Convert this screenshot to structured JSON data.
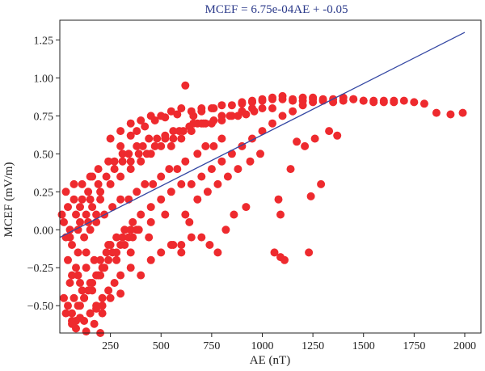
{
  "chart_data": {
    "type": "scatter",
    "title": "MCEF = 6.75e-04AE + -0.05",
    "xlabel": "AE (nT)",
    "ylabel": "MCEF (mV/m)",
    "xlim": [
      0,
      2080
    ],
    "ylim": [
      -0.68,
      1.38
    ],
    "xticks": [
      250,
      500,
      750,
      1000,
      1250,
      1500,
      1750,
      2000
    ],
    "yticks": [
      -0.5,
      -0.25,
      0.0,
      0.25,
      0.5,
      0.75,
      1.0,
      1.25
    ],
    "xtick_labels": [
      "250",
      "500",
      "750",
      "1000",
      "1250",
      "1500",
      "1750",
      "2000"
    ],
    "ytick_labels": [
      "−0.50",
      "−0.25",
      "0.00",
      "0.25",
      "0.50",
      "0.75",
      "1.00",
      "1.25"
    ],
    "grid": false,
    "marker_color": "#ee2a2e",
    "line_color": "#3447a3",
    "fit_line": {
      "slope": 0.000675,
      "intercept": -0.05,
      "x_range": [
        0,
        2000
      ]
    },
    "points": {
      "x": [
        10,
        20,
        30,
        40,
        50,
        60,
        70,
        80,
        90,
        100,
        110,
        120,
        130,
        140,
        150,
        160,
        180,
        200,
        40,
        60,
        80,
        100,
        130,
        160,
        200,
        240,
        280,
        320,
        360,
        400,
        450,
        500,
        550,
        600,
        30,
        70,
        110,
        150,
        190,
        230,
        270,
        310,
        350,
        390,
        430,
        470,
        520,
        560,
        610,
        660,
        710,
        50,
        90,
        140,
        180,
        220,
        260,
        300,
        340,
        380,
        420,
        460,
        500,
        540,
        580,
        620,
        680,
        720,
        760,
        800,
        100,
        150,
        200,
        250,
        300,
        350,
        400,
        450,
        500,
        550,
        600,
        650,
        700,
        750,
        800,
        850,
        900,
        950,
        1000,
        1050,
        250,
        300,
        350,
        400,
        450,
        500,
        550,
        600,
        650,
        700,
        750,
        800,
        850,
        900,
        950,
        1000,
        1050,
        1100,
        1150,
        1200,
        1250,
        650,
        700,
        750,
        800,
        850,
        900,
        950,
        1000,
        1050,
        1100,
        1150,
        1200,
        1250,
        1300,
        1350,
        1400,
        1450,
        1500,
        1550,
        1600,
        1650,
        900,
        950,
        1000,
        1050,
        1100,
        1150,
        1200,
        1250,
        1300,
        1350,
        1400,
        1450,
        1500,
        1550,
        1600,
        1650,
        1700,
        1750,
        1800,
        1860,
        1930,
        1990,
        20,
        40,
        60,
        80,
        100,
        120,
        140,
        160,
        180,
        200,
        220,
        240,
        260,
        280,
        300,
        320,
        340,
        360,
        380,
        30,
        60,
        90,
        120,
        150,
        180,
        210,
        240,
        270,
        300,
        350,
        400,
        450,
        500,
        550,
        600,
        650,
        50,
        70,
        90,
        110,
        130,
        150,
        170,
        190,
        210,
        230,
        250,
        280,
        310,
        350,
        390,
        440,
        60,
        80,
        100,
        120,
        150,
        180,
        210,
        250,
        300,
        130,
        170,
        200,
        210,
        350,
        450,
        520,
        560,
        600,
        640,
        700,
        740,
        780,
        820,
        860,
        920,
        1060,
        1090,
        1110,
        1230,
        1090,
        1080,
        1290,
        1240,
        1140,
        1210,
        1370,
        1330,
        1260,
        1170,
        300,
        350,
        380,
        420,
        470,
        520,
        580,
        620,
        660,
        700,
        760,
        620,
        680,
        730,
        780,
        830,
        880,
        940,
        990,
        160,
        190,
        240,
        270,
        310,
        340,
        380,
        410,
        440,
        480,
        520,
        560,
        590,
        640,
        680,
        720,
        760,
        800,
        840,
        880,
        920,
        960
      ],
      "y": [
        0.1,
        0.05,
        -0.05,
        0.15,
        0.0,
        -0.1,
        0.2,
        0.1,
        -0.15,
        0.05,
        0.2,
        -0.05,
        0.1,
        0.25,
        0.0,
        0.15,
        0.05,
        0.2,
        -0.2,
        -0.3,
        -0.25,
        -0.35,
        -0.15,
        -0.4,
        -0.2,
        -0.1,
        -0.05,
        0.0,
        0.05,
        0.1,
        0.15,
        0.2,
        0.25,
        0.3,
        0.25,
        0.3,
        0.3,
        0.35,
        0.3,
        0.35,
        0.4,
        0.45,
        0.45,
        0.5,
        0.5,
        0.55,
        0.6,
        0.6,
        0.65,
        0.7,
        0.7,
        -0.05,
        0.0,
        0.05,
        0.1,
        0.1,
        0.15,
        0.2,
        0.2,
        0.25,
        0.3,
        0.3,
        0.35,
        0.4,
        0.4,
        0.45,
        0.5,
        0.55,
        0.55,
        0.6,
        0.15,
        0.2,
        0.25,
        0.3,
        0.35,
        0.4,
        0.45,
        0.5,
        0.55,
        0.55,
        0.6,
        0.65,
        0.7,
        0.7,
        0.75,
        0.75,
        0.78,
        0.8,
        0.8,
        0.8,
        0.6,
        0.65,
        0.7,
        0.72,
        0.75,
        0.75,
        0.78,
        0.8,
        0.78,
        0.8,
        0.8,
        0.82,
        0.82,
        0.84,
        0.84,
        0.85,
        0.86,
        0.86,
        0.85,
        0.87,
        0.86,
        0.3,
        0.35,
        0.4,
        0.45,
        0.5,
        0.55,
        0.6,
        0.65,
        0.7,
        0.75,
        0.78,
        0.82,
        0.84,
        0.85,
        0.86,
        0.87,
        0.86,
        0.85,
        0.85,
        0.84,
        0.85,
        0.83,
        0.85,
        0.86,
        0.87,
        0.88,
        0.86,
        0.85,
        0.87,
        0.86,
        0.84,
        0.85,
        0.86,
        0.85,
        0.84,
        0.85,
        0.84,
        0.85,
        0.84,
        0.83,
        0.77,
        0.76,
        0.77,
        -0.45,
        -0.5,
        -0.55,
        -0.6,
        -0.5,
        -0.45,
        -0.4,
        -0.35,
        -0.3,
        -0.3,
        -0.25,
        -0.2,
        -0.15,
        -0.15,
        -0.1,
        -0.1,
        -0.05,
        -0.05,
        0.0,
        -0.55,
        -0.6,
        -0.5,
        -0.45,
        -0.55,
        -0.5,
        -0.45,
        -0.4,
        -0.35,
        -0.3,
        -0.25,
        -0.3,
        -0.2,
        -0.15,
        -0.1,
        -0.1,
        -0.05,
        -0.35,
        -0.45,
        -0.3,
        -0.4,
        -0.25,
        -0.35,
        -0.2,
        -0.3,
        -0.25,
        -0.15,
        -0.1,
        -0.2,
        -0.05,
        -0.15,
        0.0,
        -0.05,
        -0.62,
        -0.65,
        -0.58,
        -0.6,
        -0.55,
        -0.52,
        -0.5,
        -0.45,
        -0.42,
        -0.67,
        -0.62,
        -0.68,
        -0.55,
        0.0,
        0.05,
        0.1,
        -0.1,
        -0.15,
        0.05,
        -0.05,
        -0.1,
        -0.15,
        0.0,
        0.1,
        0.15,
        -0.15,
        -0.18,
        -0.2,
        -0.15,
        0.1,
        0.2,
        0.3,
        0.22,
        0.4,
        0.55,
        0.62,
        0.65,
        0.6,
        0.58,
        0.55,
        0.62,
        0.65,
        0.68,
        0.72,
        0.74,
        0.76,
        0.95,
        0.75,
        0.78,
        0.8,
        0.1,
        0.2,
        0.25,
        0.3,
        0.35,
        0.4,
        0.45,
        0.5,
        0.35,
        0.4,
        0.45,
        0.45,
        0.5,
        0.5,
        0.55,
        0.55,
        0.6,
        0.6,
        0.62,
        0.65,
        0.65,
        0.68,
        0.7,
        0.7,
        0.72,
        0.72,
        0.75,
        0.75,
        0.76,
        0.78
      ]
    }
  }
}
